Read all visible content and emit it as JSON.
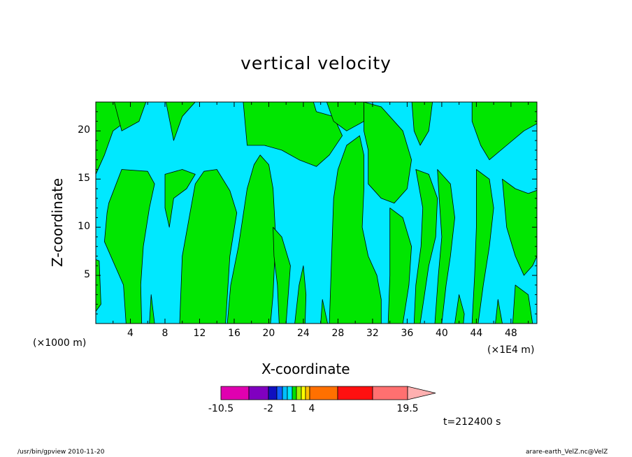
{
  "title": "vertical velocity",
  "chart_data": {
    "type": "heatmap",
    "title": "vertical velocity",
    "xlabel": "X-coordinate",
    "ylabel": "Z-coordinate",
    "x_unit_left": "(×1000 m)",
    "x_unit_right": "(×1E4 m)",
    "xlim": [
      0,
      51
    ],
    "ylim": [
      0,
      23
    ],
    "x_ticks": [
      "4",
      "8",
      "12",
      "16",
      "20",
      "24",
      "28",
      "32",
      "36",
      "40",
      "44",
      "48"
    ],
    "y_ticks": [
      "5",
      "10",
      "15",
      "20"
    ],
    "colors": {
      "cyan": "#00e8ff",
      "green": "#00e600",
      "contour": "#000000"
    },
    "colorbar": {
      "colors": [
        "#e000b0",
        "#8000c0",
        "#1010c0",
        "#1060ff",
        "#00c0ff",
        "#00e8ff",
        "#00e000",
        "#a0f000",
        "#ffff00",
        "#ffc000",
        "#ff7000",
        "#ff1010",
        "#ff7070",
        "#ffb0b0"
      ],
      "labels": [
        "-10.5",
        "-2",
        "1",
        "4",
        "19.5"
      ]
    },
    "time_label": "t=212400 s"
  },
  "footer": {
    "left": "/usr/bin/gpview   2010-11-20",
    "right": "arare-earth_VelZ.nc@VelZ"
  }
}
